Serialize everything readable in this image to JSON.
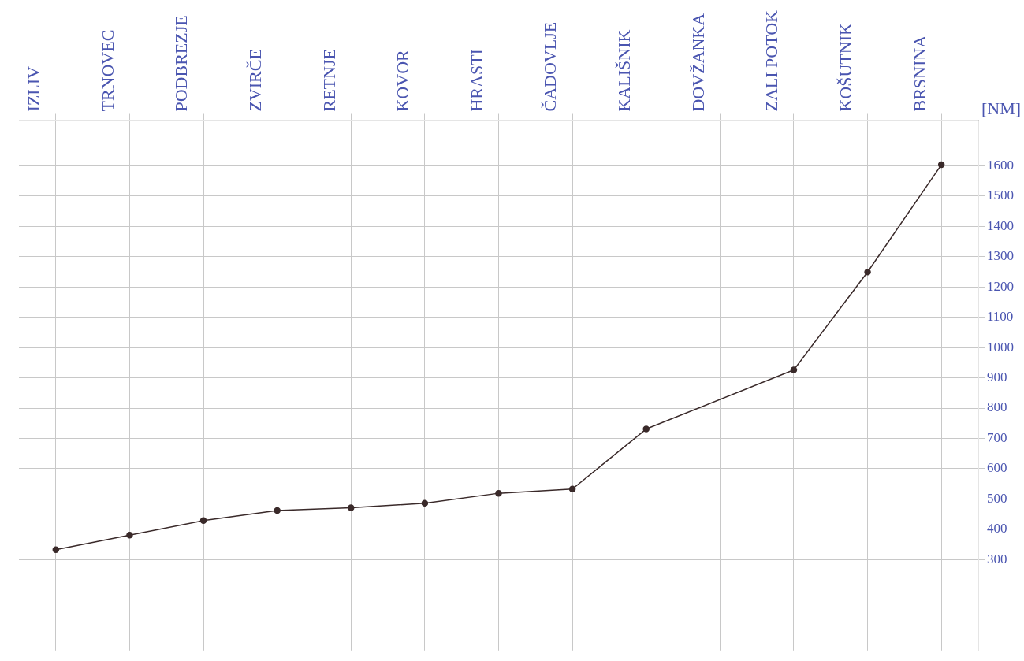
{
  "chart_data": {
    "type": "line",
    "ylabel": "[NM]",
    "categories": [
      "IZLIV",
      "TRNOVEC",
      "PODBREZJE",
      "ZVIRČE",
      "RETNJE",
      "KOVOR",
      "HRASTI",
      "ČADOVLJE",
      "KALIŠNIK",
      "DOVŽANKA",
      "ZALI POTOK",
      "KOŠUTNIK",
      "BRSNINA"
    ],
    "series": [
      {
        "color": "#3a2a2a",
        "values": [
          333,
          381,
          429,
          462,
          471,
          486,
          519,
          533,
          731,
          null,
          926,
          1249,
          1603
        ]
      }
    ],
    "ylim": [
      0,
      1750
    ],
    "yticks": [
      300,
      400,
      500,
      600,
      700,
      800,
      900,
      1000,
      1100,
      1200,
      1300,
      1400,
      1500,
      1600
    ],
    "grid": true,
    "marker": "circle",
    "line_style": "solid",
    "legend": false
  }
}
